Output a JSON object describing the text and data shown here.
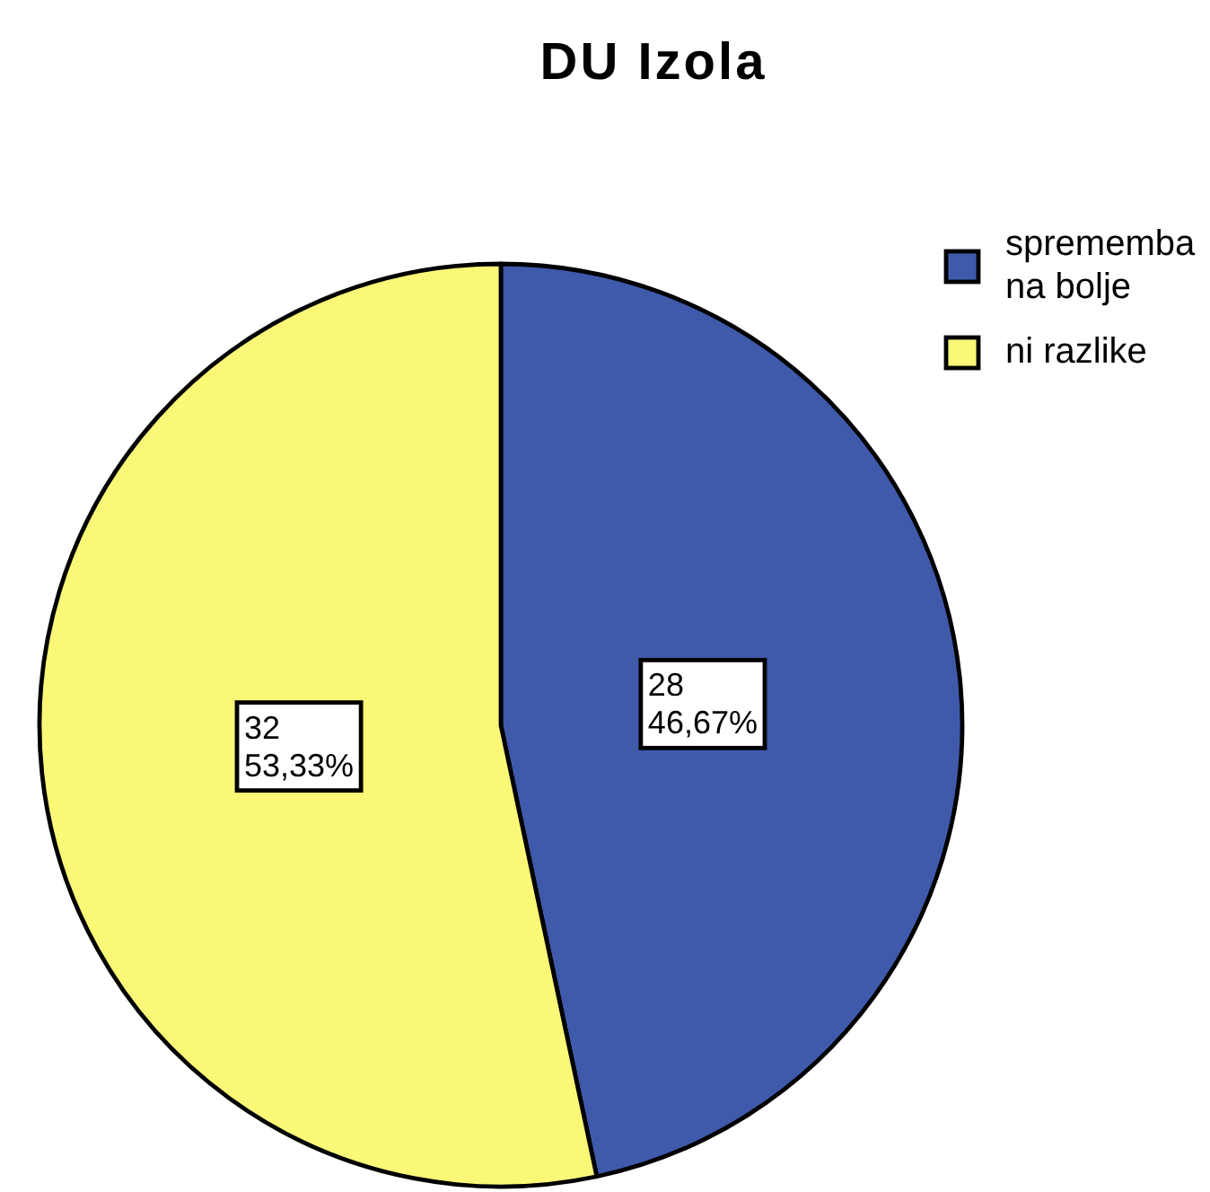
{
  "chart_data": {
    "type": "pie",
    "title": "DU Izola",
    "categories": [
      "sprememba na bolje",
      "ni razlike"
    ],
    "values": [
      28,
      32
    ],
    "colors": [
      "#3f5aab",
      "#fbf878"
    ],
    "value_labels": [
      "28\n46,67%",
      "32\n53,33%"
    ],
    "legend": "top right"
  }
}
